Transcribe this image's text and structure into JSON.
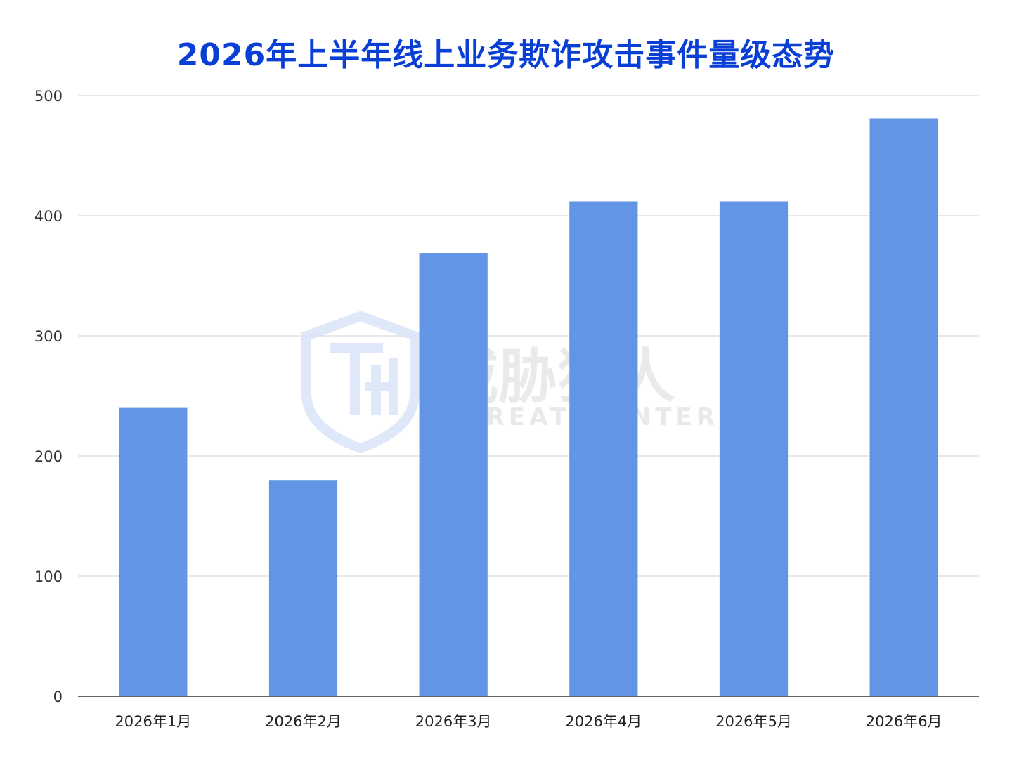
{
  "chart_data": {
    "type": "bar",
    "title": "2026年上半年线上业务欺诈攻击事件量级态势",
    "categories": [
      "2026年1月",
      "2026年2月",
      "2026年3月",
      "2026年4月",
      "2026年5月",
      "2026年6月"
    ],
    "values": [
      240,
      180,
      369,
      412,
      412,
      481
    ],
    "ylim": [
      0,
      500
    ],
    "yticks": [
      0,
      100,
      200,
      300,
      400,
      500
    ],
    "xlabel": "",
    "ylabel": "",
    "grid": true,
    "bar_color": "#6295e5",
    "title_color": "#0a3fd6"
  },
  "watermark": {
    "text_cn": "威胁猎人",
    "text_en": "THREAT HUNTER"
  }
}
